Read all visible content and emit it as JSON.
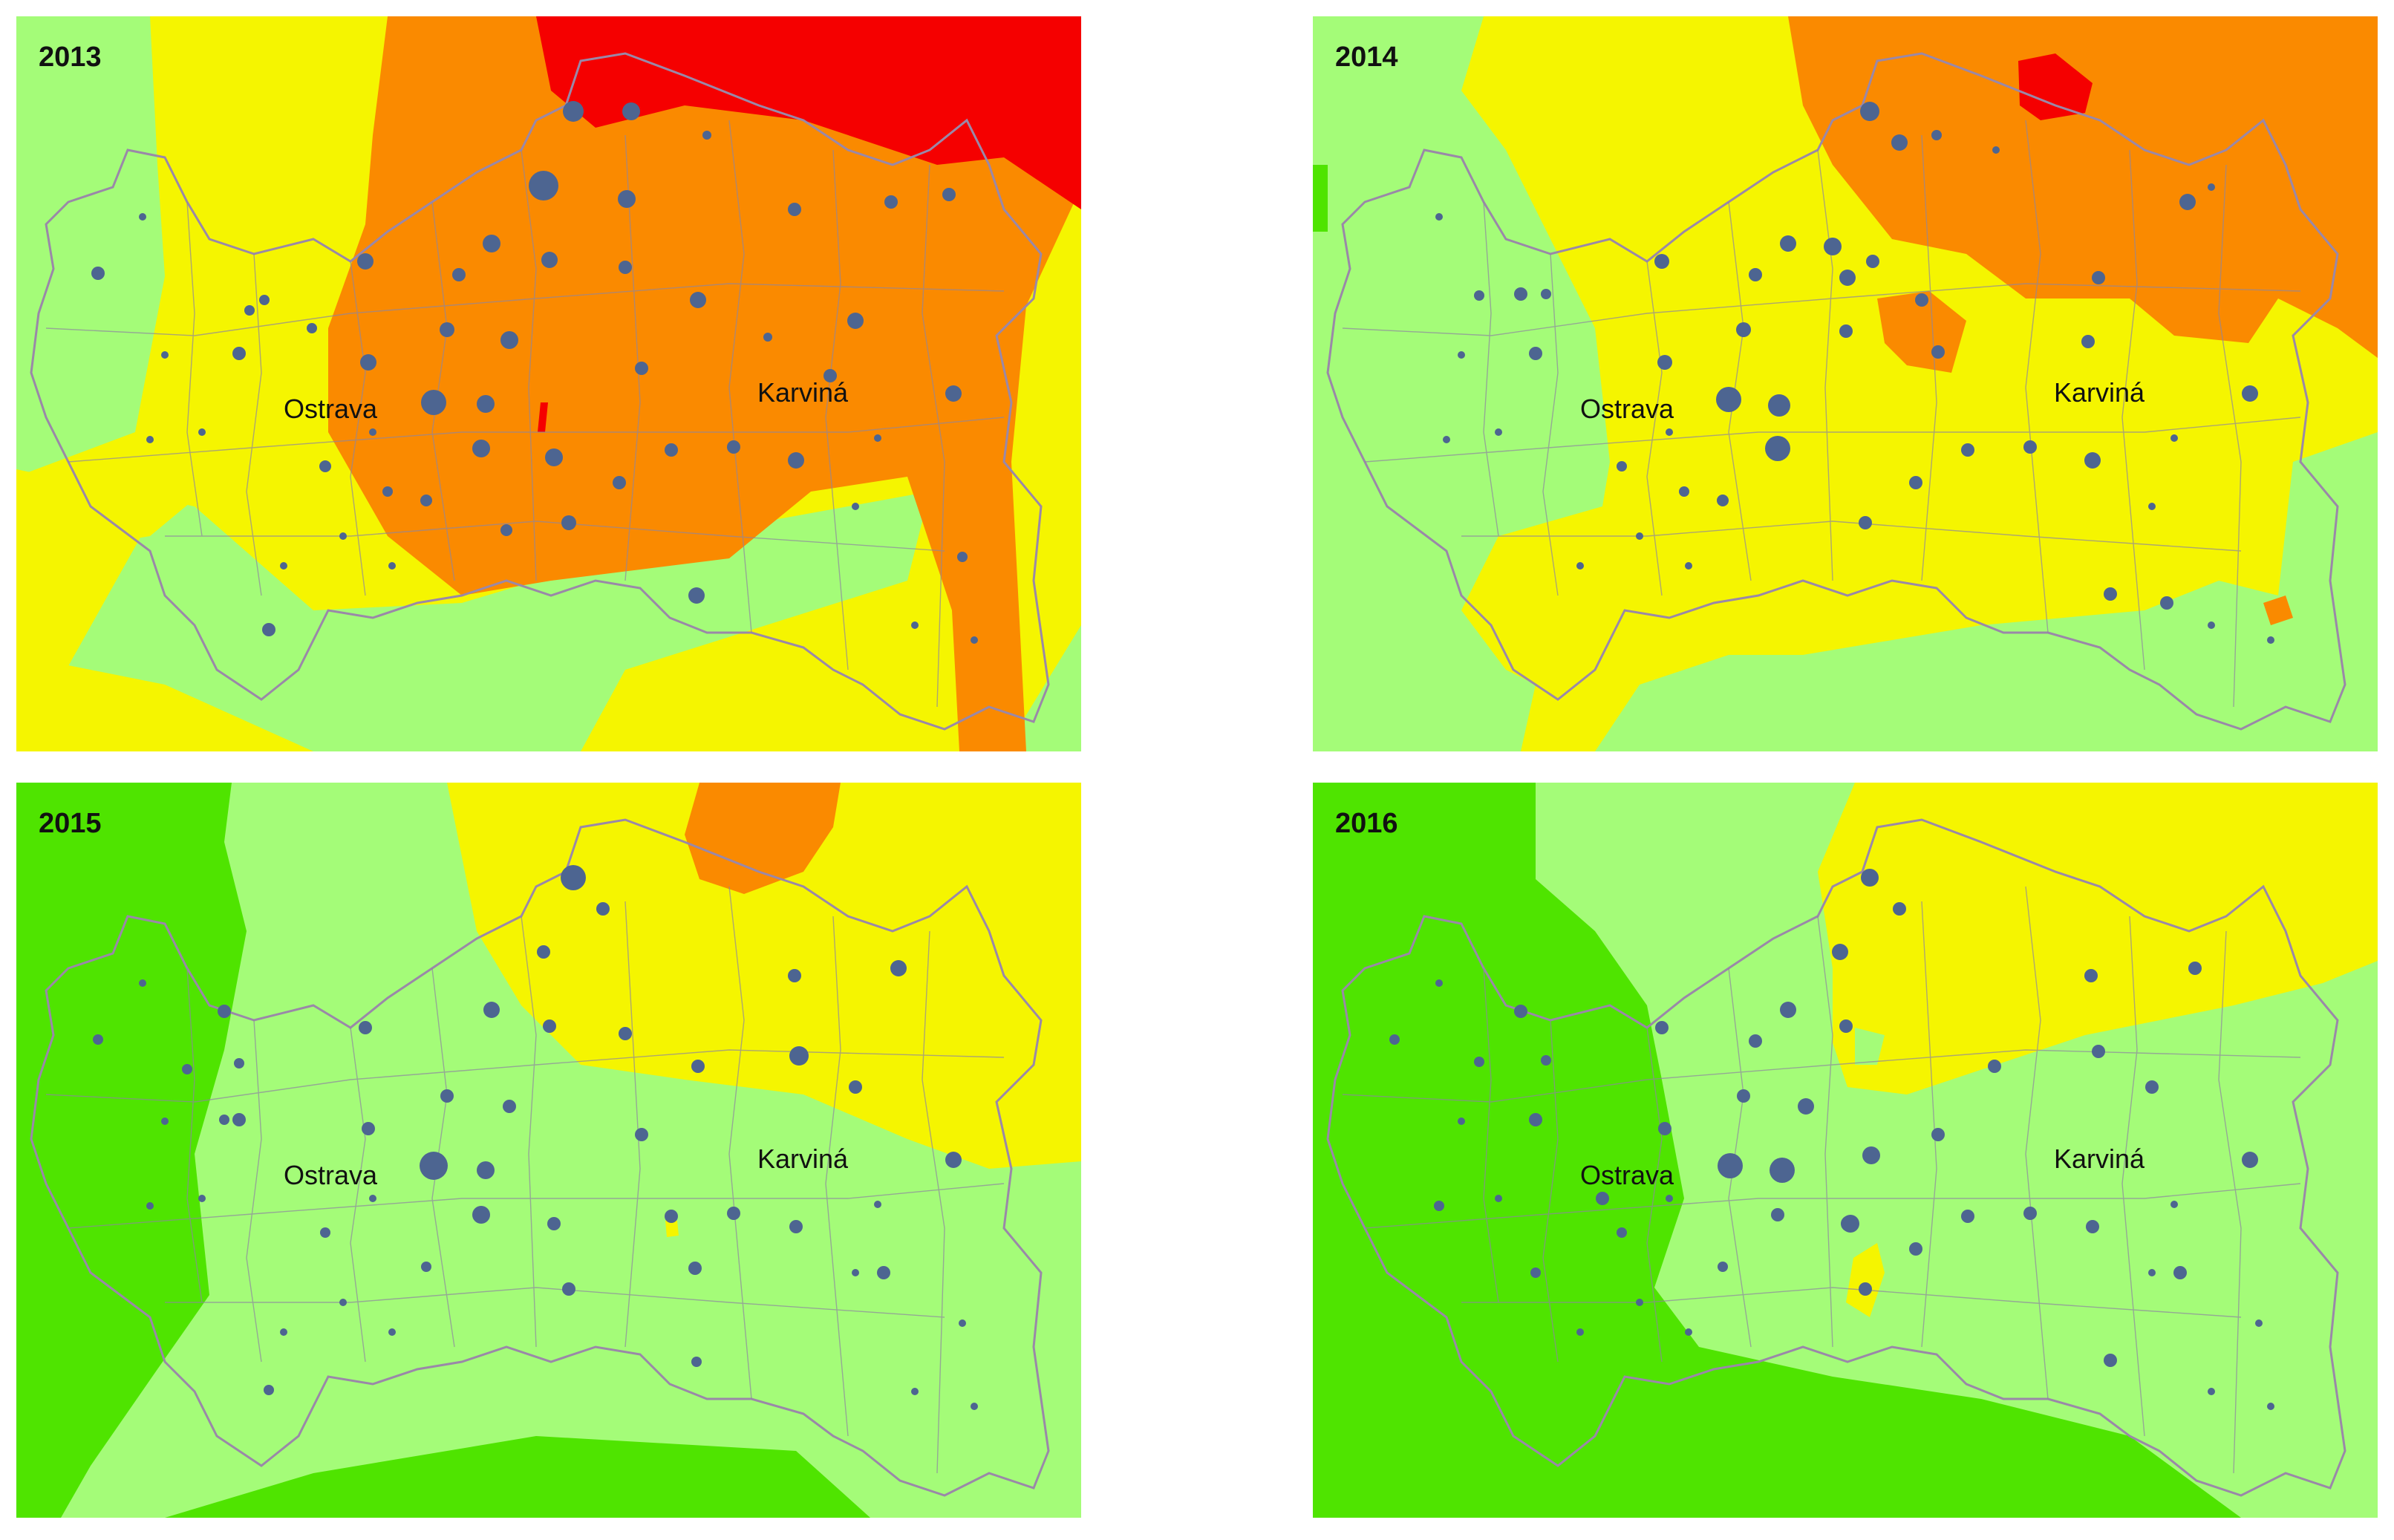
{
  "panels": [
    {
      "id": "p2013",
      "year": "2013",
      "scene": "s2013"
    },
    {
      "id": "p2014",
      "year": "2014",
      "scene": "s2014"
    },
    {
      "id": "p2015",
      "year": "2015",
      "scene": "s2015"
    },
    {
      "id": "p2016",
      "year": "2016",
      "scene": "s2016"
    }
  ],
  "cities": {
    "ostrava": "Ostrava",
    "karvina": "Karviná"
  },
  "colors": {
    "dark_green": "#4fe400",
    "light_green": "#a4fc78",
    "yellow": "#f5f500",
    "orange": "#fa8a00",
    "red": "#f50000",
    "boundary": "#9a88a8",
    "station": "#4d6591"
  }
}
